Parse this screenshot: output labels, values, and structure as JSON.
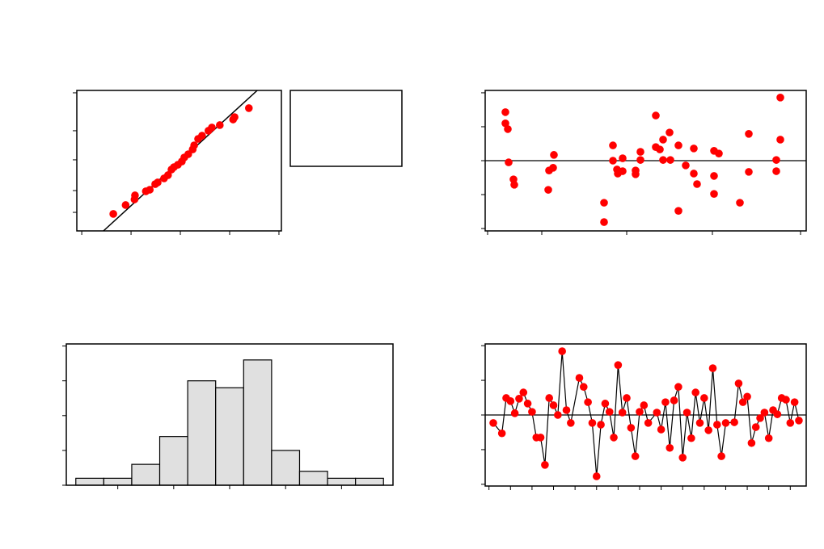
{
  "chart_data": [
    {
      "type": "scatter",
      "color": "#ff0000",
      "x": [
        -1.36,
        -1.11,
        -0.93,
        -0.92,
        -0.7,
        -0.62,
        -0.51,
        -0.46,
        -0.33,
        -0.25,
        -0.18,
        -0.13,
        -0.05,
        0.03,
        0.08,
        0.16,
        0.25,
        0.28,
        0.36,
        0.44,
        0.57,
        0.64,
        0.8,
        1.07,
        1.1,
        1.39
      ],
      "values": [
        12.1,
        18.4,
        22.4,
        25.3,
        28.2,
        29.3,
        33.3,
        34.5,
        37.4,
        39.7,
        43.7,
        45.4,
        47.1,
        49.4,
        52.3,
        54.6,
        58.0,
        60.9,
        65.5,
        67.8,
        71.3,
        73.6,
        75.3,
        79.3,
        81.0,
        87.4
      ],
      "fit": {
        "x": [
          -1.56,
          1.56
        ],
        "values": [
          0,
          100
        ],
        "color": "#000000"
      },
      "xlim": [
        -2.1,
        2.05
      ],
      "xticks": [
        -2,
        -1,
        0,
        1,
        2
      ],
      "ylim": [
        0,
        100
      ],
      "yticks": [
        98.3,
        71.3,
        50.6,
        28.7,
        13.2
      ]
    },
    {
      "type": "scatter",
      "color": "#ff0000",
      "x": [
        2.5,
        2.5,
        2.8,
        2.9,
        3.5,
        3.6,
        8.5,
        8.4,
        7.9,
        7.8,
        14.7,
        14.7,
        15.8,
        15.8,
        16.3,
        16.4,
        17.0,
        17.0,
        18.6,
        18.6,
        19.2,
        19.2,
        21.1,
        21.1,
        21.6,
        22.0,
        22.0,
        22.8,
        22.9,
        23.9,
        23.9,
        24.8,
        25.8,
        25.8,
        26.2,
        28.3,
        28.3,
        28.3,
        28.9,
        31.5,
        32.6,
        32.6,
        36.0,
        36.0,
        36.5,
        36.5
      ],
      "values": [
        1.43,
        1.1,
        0.93,
        -0.05,
        -0.55,
        -0.71,
        0.17,
        -0.21,
        -0.29,
        -0.86,
        -1.24,
        -1.81,
        0.45,
        0,
        -0.26,
        -0.38,
        0.07,
        -0.31,
        -0.29,
        -0.4,
        0.26,
        0.02,
        1.33,
        0.4,
        0.33,
        0.62,
        0.02,
        0.83,
        0.02,
        0.45,
        -1.48,
        -0.14,
        0.36,
        -0.38,
        -0.69,
        0.29,
        -0.45,
        -0.98,
        0.21,
        -1.24,
        0.79,
        -0.33,
        0.02,
        -0.31,
        1.86,
        0.62
      ],
      "refline": 0,
      "xlim": [
        0,
        39.7
      ],
      "xticks": [
        0.3,
        7,
        17.5,
        28.1,
        39
      ],
      "ylim": [
        -2.07,
        2.07
      ],
      "yticks": [
        2,
        1,
        0,
        -1,
        -2
      ]
    },
    {
      "type": "histogram",
      "color": "#e0e0e0",
      "bins": [
        -2.75,
        -2.25,
        -1.75,
        -1.25,
        -0.75,
        -0.25,
        0.25,
        0.75,
        1.25,
        1.75,
        2.25,
        2.75
      ],
      "values": [
        1,
        1,
        3,
        7,
        15,
        14,
        18,
        5,
        2,
        1,
        1
      ],
      "xlim": [
        -2.92,
        2.92
      ],
      "xticks": [
        -2,
        -1,
        0,
        1,
        2
      ],
      "ylim": [
        0,
        20.3
      ],
      "yticks": [
        20,
        15,
        10,
        5,
        0
      ]
    },
    {
      "type": "line",
      "color": "#ff0000",
      "line_color": "#000000",
      "x": [
        1,
        3,
        4,
        5,
        6,
        7,
        8,
        9,
        10,
        11,
        12,
        13,
        14,
        15,
        16,
        17,
        18,
        19,
        21,
        22,
        23,
        24,
        25,
        26,
        27,
        28,
        29,
        30,
        31,
        32,
        33,
        34,
        35,
        36,
        37,
        39,
        40,
        41,
        42,
        43,
        44,
        45,
        46,
        47,
        48,
        49,
        50,
        51,
        52,
        53,
        54,
        55,
        57,
        58,
        59,
        60,
        61,
        62,
        63,
        64,
        65,
        66,
        67,
        68,
        69,
        70,
        71,
        72
      ],
      "values": [
        -0.23,
        -0.53,
        0.49,
        0.4,
        0.05,
        0.47,
        0.65,
        0.33,
        0.09,
        -0.65,
        -0.65,
        -1.44,
        0.49,
        0.28,
        0,
        1.84,
        0.14,
        -0.23,
        1.07,
        0.81,
        0.37,
        -0.23,
        -1.77,
        -0.28,
        0.33,
        0.09,
        -0.65,
        1.44,
        0.07,
        0.49,
        -0.37,
        -1.19,
        0.09,
        0.28,
        -0.23,
        0.07,
        -0.42,
        0.37,
        -0.95,
        0.42,
        0.81,
        -1.23,
        0.07,
        -0.67,
        0.65,
        -0.23,
        0.49,
        -0.44,
        1.35,
        -0.28,
        -1.19,
        -0.23,
        -0.21,
        0.91,
        0.37,
        0.53,
        -0.81,
        -0.35,
        -0.09,
        0.07,
        -0.67,
        0.14,
        0.02,
        0.49,
        0.44,
        -0.23,
        0.37,
        -0.16
      ],
      "refline": 0,
      "xlim": [
        -0.88,
        73.7
      ],
      "xticks": [
        0,
        5,
        10,
        15,
        20,
        25,
        30,
        35,
        40,
        45,
        50,
        55,
        60,
        65,
        70
      ],
      "ylim": [
        -2.05,
        2.05
      ],
      "yticks": [
        2,
        1,
        0,
        -1,
        -2
      ]
    }
  ]
}
